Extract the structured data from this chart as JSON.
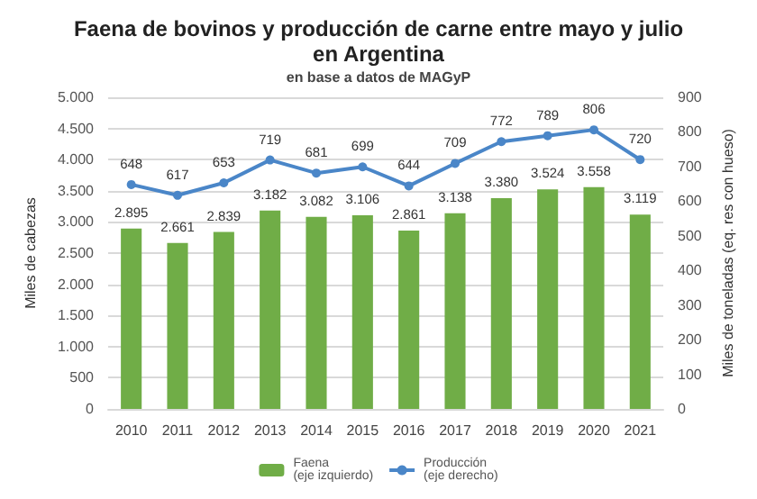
{
  "chart_data": {
    "type": "bar",
    "title": "Faena de bovinos y producción de carne entre mayo y julio\nen Argentina",
    "subtitle": "en base a datos de MAGyP",
    "ylabel": "Miles de cabezas",
    "y2label": "Miles de toneladas (eq. res con hueso)",
    "categories": [
      "2010",
      "2011",
      "2012",
      "2013",
      "2014",
      "2015",
      "2016",
      "2017",
      "2018",
      "2019",
      "2020",
      "2021"
    ],
    "series": [
      {
        "name": "Faena\n(eje izquierdo)",
        "color": "#70ad47",
        "values": [
          2895,
          2661,
          2839,
          3182,
          3082,
          3106,
          2861,
          3138,
          3380,
          3524,
          3558,
          3119
        ],
        "value_labels": [
          "2.895",
          "2.661",
          "2.839",
          "3.182",
          "3.082",
          "3.106",
          "2.861",
          "3.138",
          "3.380",
          "3.524",
          "3.558",
          "3.119"
        ]
      },
      {
        "name": "Producción\n(eje derecho)",
        "type": "line",
        "axis": "y2",
        "color": "#4a86c8",
        "values": [
          648,
          617,
          653,
          719,
          681,
          699,
          644,
          709,
          772,
          789,
          806,
          720
        ],
        "value_labels": [
          "648",
          "617",
          "653",
          "719",
          "681",
          "699",
          "644",
          "709",
          "772",
          "789",
          "806",
          "720"
        ]
      }
    ],
    "ylim": [
      0,
      5000
    ],
    "yticks": [
      {
        "value": 0,
        "label": "0"
      },
      {
        "value": 500,
        "label": "500"
      },
      {
        "value": 1000,
        "label": "1.000"
      },
      {
        "value": 1500,
        "label": "1.500"
      },
      {
        "value": 2000,
        "label": "2.000"
      },
      {
        "value": 2500,
        "label": "2.500"
      },
      {
        "value": 3000,
        "label": "3.000"
      },
      {
        "value": 3500,
        "label": "3.500"
      },
      {
        "value": 4000,
        "label": "4.000"
      },
      {
        "value": 4500,
        "label": "4.500"
      },
      {
        "value": 5000,
        "label": "5.000"
      }
    ],
    "y2lim": [
      0,
      900
    ],
    "y2ticks": [
      0,
      100,
      200,
      300,
      400,
      500,
      600,
      700,
      800,
      900
    ],
    "grid": "y",
    "legend": "bottom",
    "marker": "circle"
  }
}
